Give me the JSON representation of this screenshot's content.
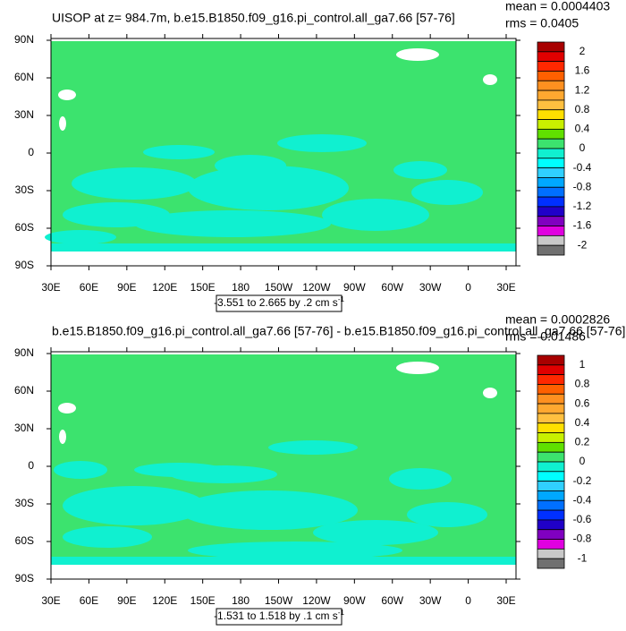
{
  "panels": [
    {
      "title": "UISOP at z= 984.7m, b.e15.B1850.f09_g16.pi_control.all_ga7.66 [57-76]",
      "mean": "mean = 0.0004403",
      "rms": "rms = 0.0405",
      "lat_labels": [
        "90N",
        "60N",
        "30N",
        "0",
        "30S",
        "60S",
        "90S"
      ],
      "lon_labels": [
        "30E",
        "60E",
        "90E",
        "120E",
        "150E",
        "180",
        "150W",
        "120W",
        "90W",
        "60W",
        "30W",
        "0",
        "30E"
      ],
      "range": {
        "text": "-3.551 to 2.665 by .2 cm s",
        "sup": "-1"
      },
      "colorbar": {
        "labels": [
          "2",
          "1.6",
          "1.2",
          "0.8",
          "0.4",
          "0",
          "-0.4",
          "-0.8",
          "-1.2",
          "-1.6",
          "-2"
        ],
        "colors": [
          "#a80000",
          "#e00000",
          "#ff2800",
          "#ff6000",
          "#ff9020",
          "#ffa830",
          "#ffc040",
          "#ffe000",
          "#c8f000",
          "#60e000",
          "#3ce36e",
          "#10f0d0",
          "#00ffff",
          "#30d0ff",
          "#00a8ff",
          "#0070ff",
          "#0030ff",
          "#2000c8",
          "#8000c0",
          "#e000e0",
          "#c8c8c8",
          "#707070"
        ]
      }
    },
    {
      "title": "b.e15.B1850.f09_g16.pi_control.all_ga7.66 [57-76] - b.e15.B1850.f09_g16.pi_control.all_ga7.66 [57-76]",
      "mean": "mean = 0.0002826",
      "rms": "rms = 0.01486",
      "lat_labels": [
        "90N",
        "60N",
        "30N",
        "0",
        "30S",
        "60S",
        "90S"
      ],
      "lon_labels": [
        "30E",
        "60E",
        "90E",
        "120E",
        "150E",
        "180",
        "150W",
        "120W",
        "90W",
        "60W",
        "30W",
        "0",
        "30E"
      ],
      "range": {
        "text": "-1.531 to 1.518 by .1 cm s",
        "sup": "-1"
      },
      "colorbar": {
        "labels": [
          "1",
          "0.8",
          "0.6",
          "0.4",
          "0.2",
          "0",
          "-0.2",
          "-0.4",
          "-0.6",
          "-0.8",
          "-1"
        ],
        "colors": [
          "#a80000",
          "#e00000",
          "#ff2800",
          "#ff6000",
          "#ff9020",
          "#ffa830",
          "#ffc040",
          "#ffe000",
          "#c8f000",
          "#60e000",
          "#3ce36e",
          "#10f0d0",
          "#00ffff",
          "#30d0ff",
          "#00a8ff",
          "#0070ff",
          "#0030ff",
          "#2000c8",
          "#8000c0",
          "#e000e0",
          "#c8c8c8",
          "#707070"
        ]
      }
    }
  ]
}
